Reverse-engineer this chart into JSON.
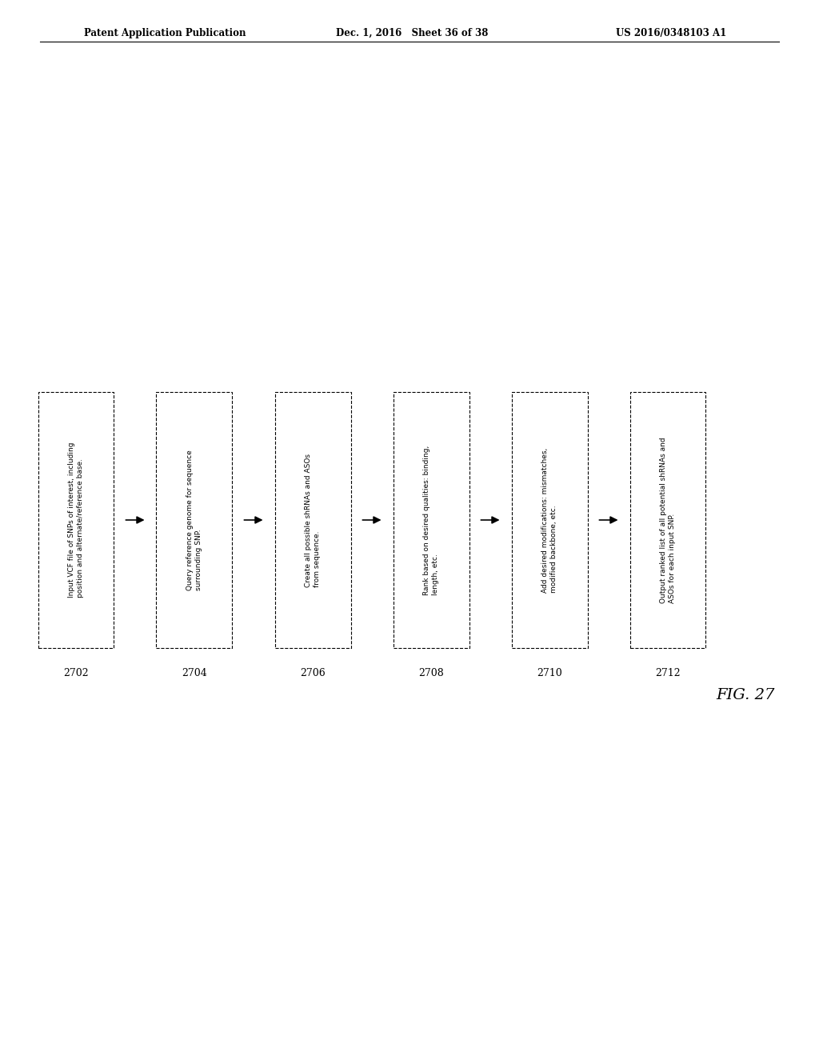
{
  "header_left": "Patent Application Publication",
  "header_mid": "Dec. 1, 2016   Sheet 36 of 38",
  "header_right": "US 2016/0348103 A1",
  "fig_label": "FIG. 27",
  "background_color": "#ffffff",
  "boxes": [
    {
      "id": "2702",
      "label": "2702",
      "text": "Input VCF file of SNPs of interest, including\nposition and alternate/reference base."
    },
    {
      "id": "2704",
      "label": "2704",
      "text": "Query reference genome for sequence\nsurrounding SNP."
    },
    {
      "id": "2706",
      "label": "2706",
      "text": "Create all possible shRNAs and ASOs\nfrom sequence."
    },
    {
      "id": "2708",
      "label": "2708",
      "text": "Rank based on desired qualities: binding,\nlength, etc."
    },
    {
      "id": "2710",
      "label": "2710",
      "text": "Add desired modifications: mismatches,\nmodified backbone, etc."
    },
    {
      "id": "2712",
      "label": "2712",
      "text": "Output ranked list of all potential shRNAs and\nASOs for each input SNP."
    }
  ]
}
